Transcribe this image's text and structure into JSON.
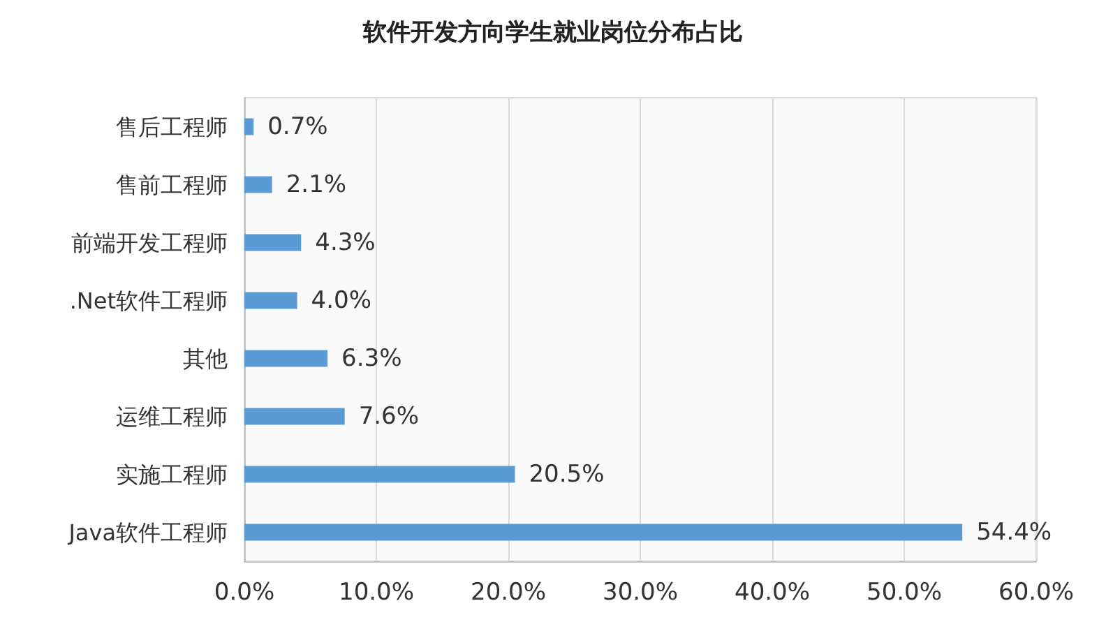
{
  "chart_data": {
    "type": "bar",
    "orientation": "horizontal",
    "title": "软件开发方向学生就业岗位分布占比",
    "categories": [
      "售后工程师",
      "售前工程师",
      "前端开发工程师",
      ".Net软件工程师",
      "其他",
      "运维工程师",
      "实施工程师",
      "Java软件工程师"
    ],
    "values": [
      0.7,
      2.1,
      4.3,
      4.0,
      6.3,
      7.6,
      20.5,
      54.4
    ],
    "value_labels": [
      "0.7%",
      "2.1%",
      "4.3%",
      "4.0%",
      "6.3%",
      "7.6%",
      "20.5%",
      "54.4%"
    ],
    "color": "#5b9bd5",
    "xlim": [
      0,
      60
    ],
    "xticks": [
      {
        "value": 0,
        "label": "0.0%"
      },
      {
        "value": 10,
        "label": "10.0%"
      },
      {
        "value": 20,
        "label": "20.0%"
      },
      {
        "value": 30,
        "label": "30.0%"
      },
      {
        "value": 40,
        "label": "40.0%"
      },
      {
        "value": 50,
        "label": "50.0%"
      },
      {
        "value": 60,
        "label": "60.0%"
      }
    ],
    "grid": "x"
  }
}
